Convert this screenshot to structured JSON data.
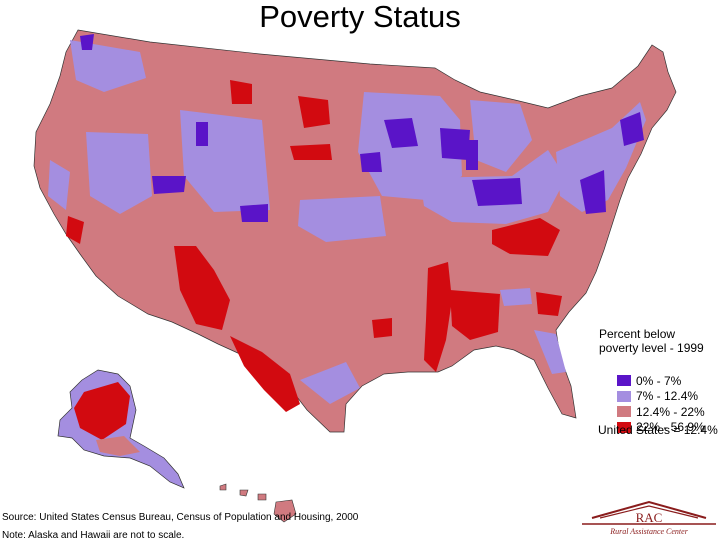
{
  "title": "Poverty Status",
  "legend": {
    "title_line1": "Percent below",
    "title_line2": "poverty level - 1999",
    "items": [
      {
        "label": "0% - 7%",
        "color": "#5a14c8"
      },
      {
        "label": "7% - 12.4%",
        "color": "#a48ee0"
      },
      {
        "label": "12.4% - 22%",
        "color": "#d07a80"
      },
      {
        "label": "22% - 56.9%",
        "color": "#d20a10"
      }
    ]
  },
  "us_total": "United States = 12.4%",
  "source": "Source:  United States Census Bureau, Census of Population and Housing, 2000",
  "note": "Note:  Alaska and Hawaii are not to scale.",
  "logo": {
    "initials": "RAC",
    "name": "Rural Assistance Center"
  }
}
